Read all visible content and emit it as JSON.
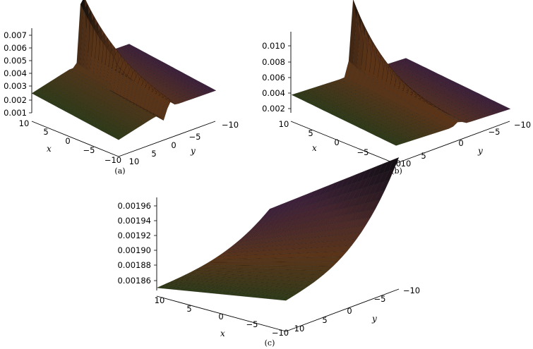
{
  "chart_data": [
    {
      "type": "surface3d",
      "caption": "(a)",
      "xlabel": "x",
      "ylabel": "y",
      "x_ticks": [
        "10",
        "5",
        "0",
        "−5",
        "−10"
      ],
      "y_ticks": [
        "10",
        "5",
        "0",
        "−5",
        "−10"
      ],
      "z_ticks": [
        "0.001",
        "0.002",
        "0.003",
        "0.004",
        "0.005",
        "0.006",
        "0.007"
      ],
      "x_range": [
        -10,
        10
      ],
      "y_range": [
        -10,
        10
      ],
      "z_range": [
        0.001,
        0.0075
      ],
      "baseline": 0.002,
      "peak": {
        "x": 0,
        "y": 0,
        "z": 0.0075
      }
    },
    {
      "type": "surface3d",
      "caption": "(b)",
      "xlabel": "x",
      "ylabel": "y",
      "x_ticks": [
        "10",
        "5",
        "0",
        "−5",
        "−10"
      ],
      "y_ticks": [
        "10",
        "5",
        "0",
        "−5",
        "−10"
      ],
      "z_ticks": [
        "0.002",
        "0.004",
        "0.006",
        "0.008",
        "0.010"
      ],
      "x_range": [
        -10,
        10
      ],
      "y_range": [
        -10,
        10
      ],
      "z_range": [
        0.002,
        0.011
      ],
      "baseline": 0.002,
      "peak": {
        "x": 0,
        "y": 0,
        "z": 0.011
      }
    },
    {
      "type": "surface3d",
      "caption": "(c)",
      "xlabel": "x",
      "ylabel": "y",
      "x_ticks": [
        "10",
        "5",
        "0",
        "−5",
        "−10"
      ],
      "y_ticks": [
        "10",
        "5",
        "0",
        "−5",
        "−10"
      ],
      "z_ticks": [
        "0.00186",
        "0.00188",
        "0.00190",
        "0.00192",
        "0.00194",
        "0.00196"
      ],
      "x_range": [
        -10,
        10
      ],
      "y_range": [
        -10,
        10
      ],
      "z_range": [
        0.00185,
        0.00197
      ],
      "baseline": 0.00185
    }
  ],
  "colors": {
    "surface_low": "#2f3a18",
    "surface_mid": "#5b3418",
    "surface_high": "#3b1e3e",
    "peak": "#0c0c0c",
    "mesh": "#000000"
  }
}
